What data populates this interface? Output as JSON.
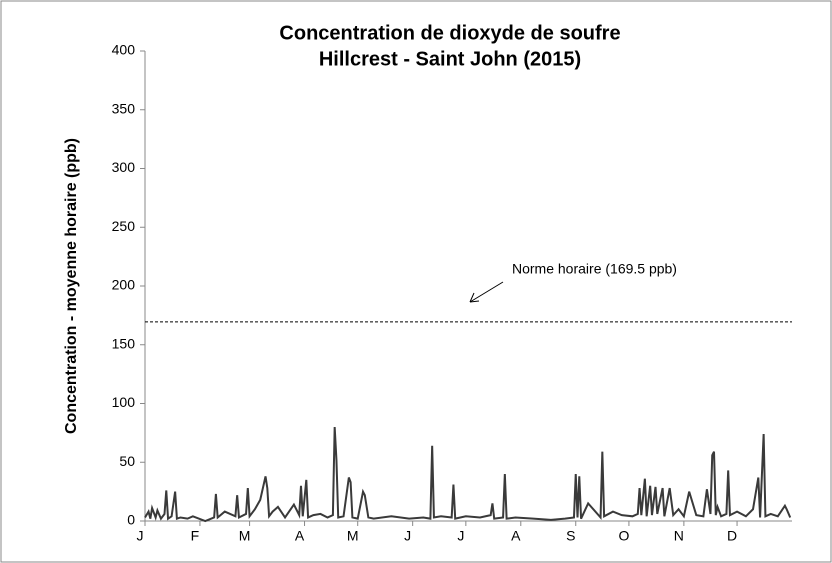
{
  "chart_data": {
    "type": "line",
    "title": "Concentration de dioxyde de soufre",
    "subtitle": "Hillcrest - Saint John (2015)",
    "y_label": "Concentration - moyenne horaire (ppb)",
    "annotation": "Norme horaire (169.5 ppb)",
    "threshold": 169.5,
    "color": "#3a3a3a",
    "x": [
      1,
      3,
      4,
      5,
      7,
      8,
      10,
      12,
      13,
      14,
      16,
      18,
      19,
      21,
      25,
      28,
      35,
      40,
      41,
      42,
      46,
      52,
      53,
      54,
      58,
      59,
      60,
      63,
      66,
      69,
      70,
      71,
      73,
      76,
      80,
      85,
      88,
      89,
      90,
      92,
      93,
      96,
      100,
      104,
      107,
      108,
      109,
      110,
      113,
      116,
      117,
      118,
      121,
      124,
      125,
      127,
      130,
      140,
      150,
      158,
      162,
      163,
      164,
      168,
      174,
      175,
      176,
      182,
      190,
      196,
      197,
      198,
      203,
      204,
      205,
      210,
      220,
      230,
      238,
      243,
      244,
      245,
      246,
      247,
      251,
      258,
      259,
      260,
      265,
      270,
      276,
      279,
      280,
      281,
      283,
      284,
      286,
      287,
      289,
      290,
      293,
      294,
      297,
      299,
      302,
      305,
      308,
      312,
      316,
      318,
      320,
      321,
      322,
      323,
      324,
      326,
      329,
      330,
      331,
      335,
      340,
      344,
      347,
      348,
      350,
      351,
      354,
      358,
      362,
      363,
      365
    ],
    "values": [
      3,
      8,
      2,
      11,
      3,
      9,
      2,
      6,
      26,
      2,
      4,
      25,
      2,
      3,
      2,
      4,
      0,
      3,
      23,
      3,
      8,
      4,
      22,
      3,
      6,
      28,
      4,
      10,
      18,
      38,
      28,
      4,
      8,
      12,
      3,
      14,
      5,
      30,
      4,
      35,
      3,
      5,
      6,
      3,
      5,
      80,
      52,
      3,
      4,
      37,
      33,
      3,
      2,
      25,
      22,
      3,
      2,
      4,
      2,
      3,
      2,
      64,
      3,
      4,
      3,
      31,
      2,
      4,
      3,
      5,
      15,
      2,
      3,
      40,
      2,
      3,
      2,
      1,
      2,
      3,
      40,
      3,
      38,
      2,
      15,
      3,
      59,
      4,
      8,
      5,
      4,
      6,
      28,
      5,
      36,
      4,
      30,
      5,
      29,
      6,
      28,
      4,
      28,
      5,
      10,
      4,
      25,
      5,
      4,
      27,
      6,
      56,
      59,
      5,
      12,
      4,
      6,
      43,
      5,
      8,
      4,
      10,
      37,
      3,
      74,
      4,
      6,
      4,
      13,
      10,
      3
    ],
    "xlim": [
      1,
      366
    ],
    "xticks": [
      {
        "value": 1,
        "label": "J"
      },
      {
        "value": 32,
        "label": "F"
      },
      {
        "value": 60,
        "label": "M"
      },
      {
        "value": 91,
        "label": "A"
      },
      {
        "value": 121,
        "label": "M"
      },
      {
        "value": 152,
        "label": "J"
      },
      {
        "value": 182,
        "label": "J"
      },
      {
        "value": 213,
        "label": "A"
      },
      {
        "value": 244,
        "label": "S"
      },
      {
        "value": 274,
        "label": "O"
      },
      {
        "value": 305,
        "label": "N"
      },
      {
        "value": 335,
        "label": "D"
      }
    ],
    "ylim": [
      0,
      400
    ],
    "yticks": [
      0,
      50,
      100,
      150,
      200,
      250,
      300,
      350,
      400
    ]
  }
}
